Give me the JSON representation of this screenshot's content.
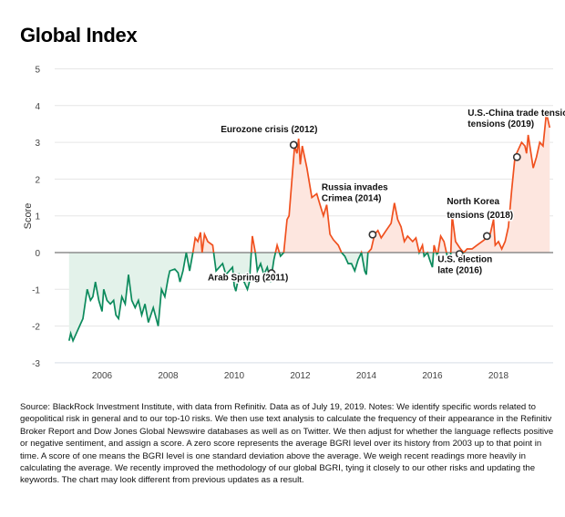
{
  "title": "Global Index",
  "chart_data": {
    "type": "line",
    "title": "Global Index",
    "xlabel": "",
    "ylabel": "Score",
    "xlim": [
      2005,
      2019.6
    ],
    "ylim": [
      -3,
      5
    ],
    "grid": true,
    "x_ticks": [
      "2006",
      "2008",
      "2010",
      "2012",
      "2014",
      "2016",
      "2018"
    ],
    "y_ticks": [
      "5",
      "4",
      "3",
      "2",
      "1",
      "0",
      "-1",
      "-2",
      "-3"
    ],
    "colors": {
      "positive": "#f0501e",
      "negative": "#0b8a5c",
      "positive_fill": "#fde6df",
      "negative_fill": "#e3f2ea",
      "zero_line": "#777777",
      "grid": "#e6e6e6"
    },
    "series": [
      {
        "points": [
          [
            2005.0,
            -2.4
          ],
          [
            2005.05,
            -2.2
          ],
          [
            2005.12,
            -2.4
          ],
          [
            2005.22,
            -2.2
          ],
          [
            2005.32,
            -2.0
          ],
          [
            2005.42,
            -1.8
          ],
          [
            2005.55,
            -1.0
          ],
          [
            2005.65,
            -1.3
          ],
          [
            2005.72,
            -1.2
          ],
          [
            2005.8,
            -0.8
          ],
          [
            2005.9,
            -1.3
          ],
          [
            2006.0,
            -1.6
          ],
          [
            2006.05,
            -1.0
          ],
          [
            2006.15,
            -1.3
          ],
          [
            2006.25,
            -1.4
          ],
          [
            2006.35,
            -1.3
          ],
          [
            2006.42,
            -1.7
          ],
          [
            2006.5,
            -1.8
          ],
          [
            2006.6,
            -1.2
          ],
          [
            2006.7,
            -1.4
          ],
          [
            2006.8,
            -0.6
          ],
          [
            2006.9,
            -1.3
          ],
          [
            2007.0,
            -1.5
          ],
          [
            2007.1,
            -1.3
          ],
          [
            2007.2,
            -1.7
          ],
          [
            2007.3,
            -1.4
          ],
          [
            2007.4,
            -1.9
          ],
          [
            2007.55,
            -1.5
          ],
          [
            2007.7,
            -2.0
          ],
          [
            2007.8,
            -1.0
          ],
          [
            2007.9,
            -1.2
          ],
          [
            2008.0,
            -0.7
          ],
          [
            2008.05,
            -0.5
          ],
          [
            2008.2,
            -0.45
          ],
          [
            2008.3,
            -0.55
          ],
          [
            2008.36,
            -0.8
          ],
          [
            2008.45,
            -0.5
          ],
          [
            2008.55,
            0.0
          ],
          [
            2008.65,
            -0.5
          ],
          [
            2008.75,
            0.0
          ],
          [
            2008.82,
            0.4
          ],
          [
            2008.9,
            0.3
          ],
          [
            2008.98,
            0.55
          ],
          [
            2009.03,
            0.0
          ],
          [
            2009.1,
            0.5
          ],
          [
            2009.2,
            0.3
          ],
          [
            2009.35,
            0.2
          ],
          [
            2009.45,
            -0.5
          ],
          [
            2009.55,
            -0.4
          ],
          [
            2009.65,
            -0.3
          ],
          [
            2009.75,
            -0.6
          ],
          [
            2009.85,
            -0.5
          ],
          [
            2009.95,
            -0.4
          ],
          [
            2010.0,
            -0.9
          ],
          [
            2010.05,
            -1.05
          ],
          [
            2010.15,
            -0.6
          ],
          [
            2010.3,
            -0.8
          ],
          [
            2010.4,
            -1.0
          ],
          [
            2010.46,
            -0.8
          ],
          [
            2010.55,
            0.45
          ],
          [
            2010.64,
            0.0
          ],
          [
            2010.7,
            -0.5
          ],
          [
            2010.8,
            -0.3
          ],
          [
            2010.9,
            -0.6
          ],
          [
            2011.0,
            -0.4
          ],
          [
            2011.1,
            -0.8
          ],
          [
            2011.2,
            -0.2
          ],
          [
            2011.3,
            0.2
          ],
          [
            2011.4,
            -0.1
          ],
          [
            2011.5,
            0.0
          ],
          [
            2011.6,
            0.9
          ],
          [
            2011.66,
            1.0
          ],
          [
            2011.75,
            2.0
          ],
          [
            2011.83,
            2.9
          ],
          [
            2011.9,
            2.7
          ],
          [
            2011.95,
            3.1
          ],
          [
            2012.0,
            2.4
          ],
          [
            2012.06,
            2.9
          ],
          [
            2012.2,
            2.3
          ],
          [
            2012.35,
            1.5
          ],
          [
            2012.5,
            1.6
          ],
          [
            2012.6,
            1.3
          ],
          [
            2012.7,
            1.0
          ],
          [
            2012.8,
            1.3
          ],
          [
            2012.9,
            0.5
          ],
          [
            2013.0,
            0.35
          ],
          [
            2013.15,
            0.2
          ],
          [
            2013.25,
            0.0
          ],
          [
            2013.35,
            -0.1
          ],
          [
            2013.45,
            -0.3
          ],
          [
            2013.55,
            -0.3
          ],
          [
            2013.65,
            -0.5
          ],
          [
            2013.75,
            -0.2
          ],
          [
            2013.85,
            0.0
          ],
          [
            2013.95,
            -0.5
          ],
          [
            2014.0,
            -0.6
          ],
          [
            2014.05,
            0.0
          ],
          [
            2014.15,
            0.1
          ],
          [
            2014.25,
            0.5
          ],
          [
            2014.35,
            0.6
          ],
          [
            2014.45,
            0.4
          ],
          [
            2014.6,
            0.6
          ],
          [
            2014.75,
            0.8
          ],
          [
            2014.85,
            1.35
          ],
          [
            2014.95,
            0.9
          ],
          [
            2015.05,
            0.7
          ],
          [
            2015.15,
            0.3
          ],
          [
            2015.25,
            0.45
          ],
          [
            2015.4,
            0.3
          ],
          [
            2015.5,
            0.4
          ],
          [
            2015.6,
            0.0
          ],
          [
            2015.7,
            0.2
          ],
          [
            2015.75,
            -0.1
          ],
          [
            2015.85,
            0.0
          ],
          [
            2015.92,
            -0.2
          ],
          [
            2016.0,
            -0.4
          ],
          [
            2016.05,
            0.2
          ],
          [
            2016.15,
            -0.1
          ],
          [
            2016.25,
            0.45
          ],
          [
            2016.35,
            0.3
          ],
          [
            2016.45,
            -0.1
          ],
          [
            2016.55,
            -0.2
          ],
          [
            2016.6,
            1.0
          ],
          [
            2016.7,
            0.3
          ],
          [
            2016.85,
            0.1
          ],
          [
            2016.95,
            0.0
          ],
          [
            2017.05,
            0.1
          ],
          [
            2017.2,
            0.1
          ],
          [
            2017.35,
            0.2
          ],
          [
            2017.5,
            0.3
          ],
          [
            2017.65,
            0.4
          ],
          [
            2017.75,
            0.5
          ],
          [
            2017.85,
            0.9
          ],
          [
            2017.9,
            0.2
          ],
          [
            2018.0,
            0.3
          ],
          [
            2018.1,
            0.1
          ],
          [
            2018.2,
            0.3
          ],
          [
            2018.3,
            0.7
          ],
          [
            2018.4,
            1.7
          ],
          [
            2018.5,
            2.6
          ],
          [
            2018.6,
            2.8
          ],
          [
            2018.7,
            3.0
          ],
          [
            2018.8,
            2.9
          ],
          [
            2018.85,
            2.7
          ],
          [
            2018.9,
            3.2
          ],
          [
            2019.0,
            2.6
          ],
          [
            2019.05,
            2.3
          ],
          [
            2019.15,
            2.6
          ],
          [
            2019.25,
            3.0
          ],
          [
            2019.35,
            2.9
          ],
          [
            2019.45,
            3.8
          ],
          [
            2019.55,
            3.4
          ]
        ]
      }
    ],
    "annotations": [
      {
        "lines": [
          "Eurozone crisis (2012)"
        ],
        "x": 2011.8,
        "y": 2.93
      },
      {
        "lines": [
          "Arab Spring (2011)"
        ],
        "x": 2011.13,
        "y": -0.56
      },
      {
        "lines": [
          "Russia invades",
          "Crimea (2014)"
        ],
        "x": 2014.19,
        "y": 0.49
      },
      {
        "lines": [
          "U.S. election",
          "late (2016)"
        ],
        "x": 2016.82,
        "y": -0.04
      },
      {
        "lines": [
          "North Korea",
          "tensions (2018)"
        ],
        "x": 2017.65,
        "y": 0.45
      },
      {
        "lines": [
          "U.S.-China trade tensions",
          "tensions (2019)"
        ],
        "x": 2018.56,
        "y": 2.6
      }
    ]
  },
  "note": "Source: BlackRock Investment Institute, with data from Refinitiv. Data as of July 19, 2019. Notes: We identify specific words related to geopolitical risk in general and to our top-10 risks. We then use text analysis to calculate the frequency of their appearance in the Refinitiv Broker Report and Dow Jones Global Newswire databases as well as on Twitter. We then adjust for whether the language reflects positive or negative sentiment, and assign a score. A zero score represents the average BGRI level over its history from 2003 up to that point in time. A score of one means the BGRI level is one standard deviation above the average. We weigh recent readings more heavily in calculating the average. We recently improved the methodology of our global BGRI, tying it closely to our other risks and updating the keywords. The chart may look different from previous updates as a result."
}
